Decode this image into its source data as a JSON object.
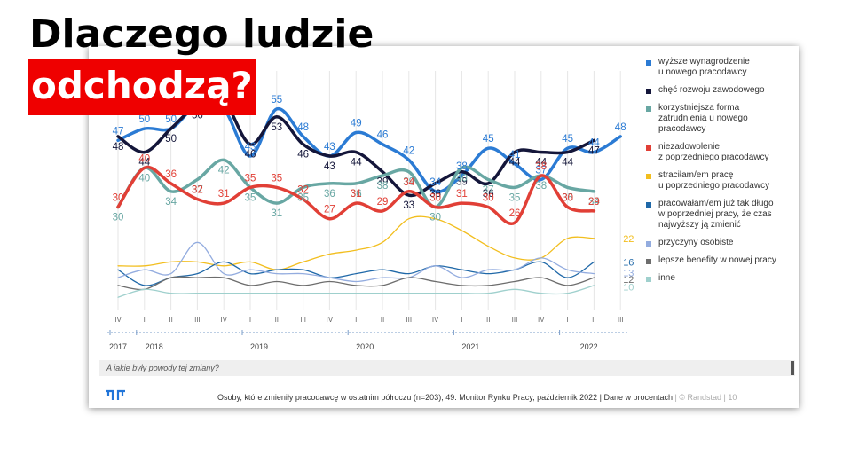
{
  "headline": {
    "line1": "Dlaczego ludzie",
    "line2": "odchodzą?"
  },
  "question": "A jakie były powody tej zmiany?",
  "footer": {
    "source": "Osoby, które zmieniły pracodawcę w ostatnim półroczu (n=203), 49. Monitor Rynku Pracy, październik 2022 | Dane w procentach",
    "brand": "| © Randstad | 10"
  },
  "chart_data": {
    "type": "line",
    "quarters": [
      "IV",
      "I",
      "II",
      "III",
      "IV",
      "I",
      "II",
      "III",
      "IV",
      "I",
      "II",
      "III",
      "IV",
      "I",
      "II",
      "III",
      "IV",
      "I",
      "II",
      "III"
    ],
    "years": [
      "2017",
      "2018",
      "2019",
      "2020",
      "2021",
      "2022"
    ],
    "series": [
      {
        "name": "wyższe wynagrodzenie\nu nowego pracodawcy",
        "color": "#2b7bd4",
        "width": 3.5,
        "labeled": true,
        "values": [
          47,
          50,
          50,
          56,
          55,
          43,
          55,
          48,
          43,
          49,
          46,
          42,
          34,
          38,
          45,
          41,
          37,
          45,
          44,
          48
        ]
      },
      {
        "name": "chęć rozwoju zawodowego",
        "color": "#14163a",
        "width": 3.5,
        "labeled": true,
        "values": [
          48,
          44,
          50,
          56,
          57,
          46,
          53,
          46,
          43,
          44,
          39,
          33,
          36,
          39,
          36,
          44,
          44,
          44,
          47,
          null
        ]
      },
      {
        "name": "korzystniejsza forma\nzatrudnienia u nowego\npracodawcy",
        "color": "#68a7a3",
        "width": 3.5,
        "labeled": true,
        "values": [
          30,
          40,
          34,
          37,
          42,
          35,
          31,
          35,
          36,
          36,
          38,
          39,
          30,
          40,
          37,
          35,
          38,
          35,
          34,
          null
        ]
      },
      {
        "name": "niezadowolenie\nz poprzedniego pracodawcy",
        "color": "#e13f36",
        "width": 3.5,
        "labeled": true,
        "values": [
          30,
          40,
          36,
          32,
          31,
          35,
          35,
          32,
          27,
          31,
          29,
          34,
          30,
          31,
          30,
          26,
          38,
          30,
          29,
          null
        ]
      },
      {
        "name": "straciłam/em pracę\nu poprzedniego pracodawcy",
        "color": "#f2be1e",
        "width": 1.3,
        "labeled": false,
        "values": [
          15,
          15,
          16,
          16,
          15,
          16,
          14,
          16,
          18,
          19,
          21,
          27,
          27,
          24,
          20,
          17,
          17,
          22,
          22,
          null
        ]
      },
      {
        "name": "pracowałam/em już tak długo\nw poprzedniej pracy, że czas\nnajwyższy ją zmienić",
        "color": "#1f68a8",
        "width": 1.3,
        "labeled": false,
        "values": [
          14,
          10,
          12,
          13,
          16,
          13,
          14,
          14,
          12,
          13,
          14,
          13,
          15,
          14,
          13,
          14,
          16,
          12,
          16,
          null
        ]
      },
      {
        "name": "przyczyny osobiste",
        "color": "#93acdf",
        "width": 1.3,
        "labeled": false,
        "values": [
          12,
          14,
          13,
          21,
          13,
          14,
          13,
          13,
          12,
          11,
          12,
          12,
          15,
          12,
          14,
          14,
          17,
          14,
          13,
          null
        ]
      },
      {
        "name": "lepsze benefity w nowej pracy",
        "color": "#6d6d6d",
        "width": 1.3,
        "labeled": false,
        "values": [
          10,
          9,
          12,
          12,
          12,
          10,
          11,
          10,
          11,
          10,
          10,
          12,
          11,
          10,
          10,
          11,
          12,
          10,
          12,
          null
        ]
      },
      {
        "name": "inne",
        "color": "#9fd0cd",
        "width": 1.3,
        "labeled": false,
        "values": [
          7,
          9,
          8,
          8,
          8,
          8,
          8,
          8,
          8,
          8,
          8,
          8,
          8,
          8,
          8,
          9,
          8,
          8,
          10,
          null
        ]
      }
    ],
    "end_labels": [
      {
        "text": "22",
        "color": "#f2be1e",
        "value": 22
      },
      {
        "text": "16",
        "color": "#1f68a8",
        "value": 16
      },
      {
        "text": "13",
        "color": "#93acdf",
        "value": 13.2
      },
      {
        "text": "12",
        "color": "#6d6d6d",
        "value": 11.6
      },
      {
        "text": "10",
        "color": "#9fd0cd",
        "value": 9.6
      }
    ],
    "ylim": [
      5,
      62
    ],
    "grid": "vertical"
  }
}
